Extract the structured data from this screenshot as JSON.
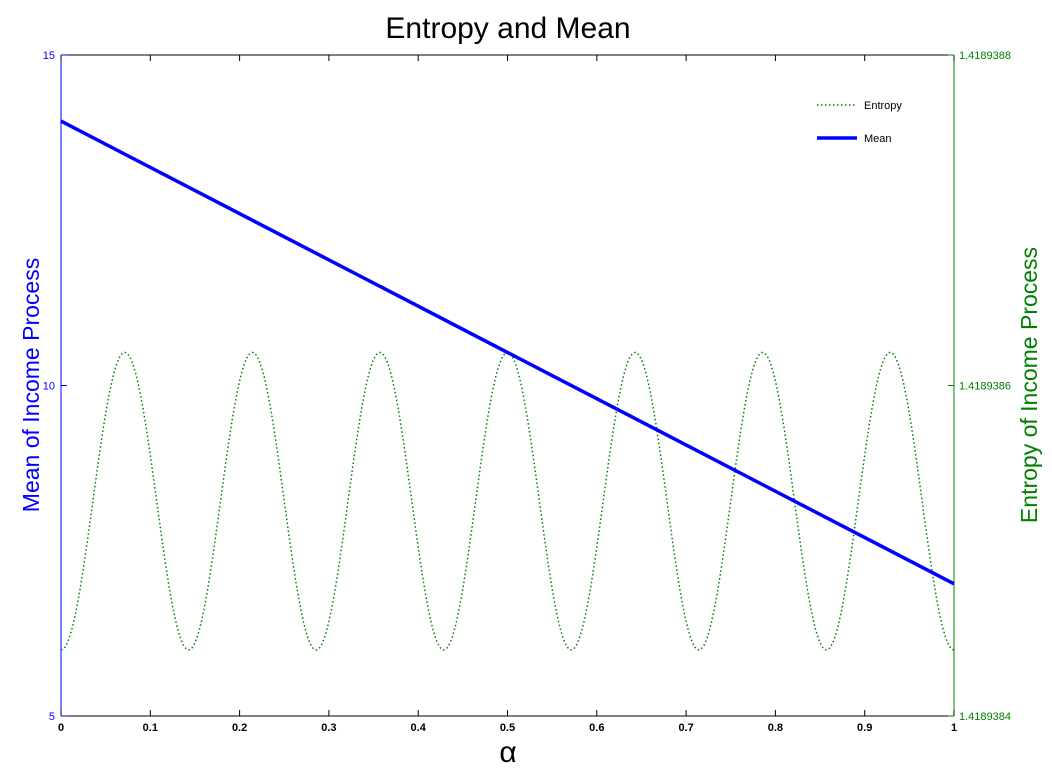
{
  "chart_data": {
    "type": "line",
    "title": "Entropy and Mean",
    "xlabel": "α",
    "y_left_label": "Mean of Income Process",
    "y_right_label": "Entropy of Income Process",
    "xlim": [
      0,
      1
    ],
    "ylim_left": [
      5,
      15
    ],
    "ylim_right": [
      1.4189384,
      1.4189388
    ],
    "x_ticks": [
      "0",
      "0.1",
      "0.2",
      "0.3",
      "0.4",
      "0.5",
      "0.6",
      "0.7",
      "0.8",
      "0.9",
      "1"
    ],
    "y_left_ticks": [
      "5",
      "10",
      "15"
    ],
    "y_right_ticks": [
      "1.4189384",
      "1.4189386",
      "1.4189388"
    ],
    "grid": false,
    "legend_position": "top-right",
    "series": [
      {
        "name": "Entropy",
        "axis": "right",
        "style": "dotted",
        "color": "#008000",
        "x": [
          0,
          0.0714,
          0.1429,
          0.2143,
          0.2857,
          0.3571,
          0.4286,
          0.5,
          0.5714,
          0.6429,
          0.7143,
          0.7857,
          0.8571,
          0.9286,
          1
        ],
        "y": [
          1.41893844,
          1.41893862,
          1.41893844,
          1.41893862,
          1.41893844,
          1.41893862,
          1.41893844,
          1.41893862,
          1.41893844,
          1.41893862,
          1.41893844,
          1.41893862,
          1.41893844,
          1.41893862,
          1.41893844
        ]
      },
      {
        "name": "Mean",
        "axis": "left",
        "style": "solid",
        "color": "#0000ff",
        "x": [
          0,
          1
        ],
        "y": [
          14,
          7
        ]
      }
    ]
  },
  "colors": {
    "left_axis": "#0000ff",
    "right_axis": "#008000",
    "frame": "#000000"
  }
}
